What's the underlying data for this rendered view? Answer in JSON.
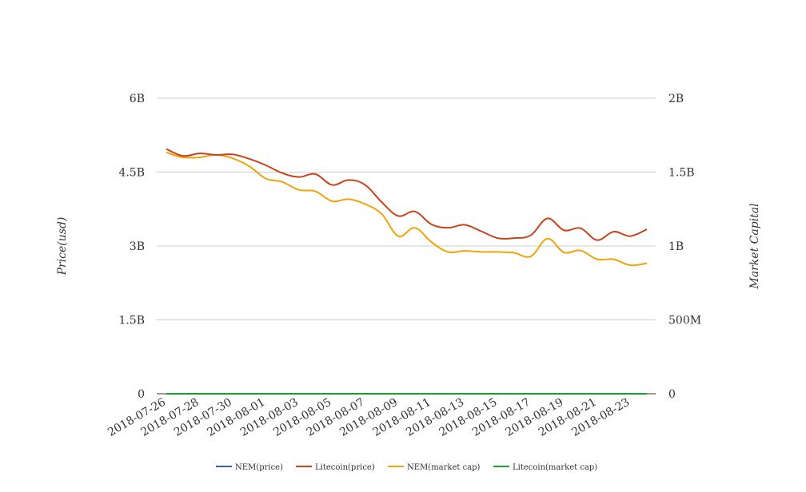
{
  "chart_data": {
    "type": "line",
    "title": "",
    "xlabel": "",
    "ylabel": "Price(usd)",
    "y2label": "Market Capital",
    "grid": true,
    "legend_position": "bottom",
    "x": [
      "2018-07-26",
      "2018-07-27",
      "2018-07-28",
      "2018-07-29",
      "2018-07-30",
      "2018-07-31",
      "2018-08-01",
      "2018-08-02",
      "2018-08-03",
      "2018-08-04",
      "2018-08-05",
      "2018-08-06",
      "2018-08-07",
      "2018-08-08",
      "2018-08-09",
      "2018-08-10",
      "2018-08-11",
      "2018-08-12",
      "2018-08-13",
      "2018-08-14",
      "2018-08-15",
      "2018-08-16",
      "2018-08-17",
      "2018-08-18",
      "2018-08-19",
      "2018-08-20",
      "2018-08-21",
      "2018-08-22",
      "2018-08-23",
      "2018-08-24"
    ],
    "x_tick_labels": [
      "2018-07-26",
      "2018-07-28",
      "2018-07-30",
      "2018-08-01",
      "2018-08-03",
      "2018-08-05",
      "2018-08-07",
      "2018-08-09",
      "2018-08-11",
      "2018-08-13",
      "2018-08-15",
      "2018-08-17",
      "2018-08-19",
      "2018-08-21",
      "2018-08-23"
    ],
    "y_left": {
      "range": [
        0,
        6000000000
      ],
      "ticks": [
        0,
        1500000000,
        3000000000,
        4500000000,
        6000000000
      ],
      "tick_labels": [
        "0",
        "1.5B",
        "3B",
        "4.5B",
        "6B"
      ]
    },
    "y_right": {
      "range": [
        0,
        2000000000
      ],
      "ticks": [
        0,
        500000000,
        1000000000,
        1500000000,
        2000000000
      ],
      "tick_labels": [
        "0",
        "500M",
        "1B",
        "1.5B",
        "2B"
      ]
    },
    "series": [
      {
        "name": "NEM(price)",
        "axis": "left",
        "color": "#3b5fa8",
        "values": [
          0.16,
          0.16,
          0.16,
          0.16,
          0.15,
          0.15,
          0.14,
          0.13,
          0.13,
          0.12,
          0.12,
          0.12,
          0.11,
          0.1,
          0.09,
          0.1,
          0.09,
          0.09,
          0.09,
          0.09,
          0.09,
          0.09,
          0.09,
          0.1,
          0.09,
          0.09,
          0.09,
          0.08,
          0.08,
          0.08
        ]
      },
      {
        "name": "Litecoin(price)",
        "axis": "left",
        "color": "#c8431c",
        "values": [
          4970000000,
          4830000000,
          4880000000,
          4850000000,
          4860000000,
          4770000000,
          4640000000,
          4480000000,
          4400000000,
          4460000000,
          4240000000,
          4340000000,
          4240000000,
          3890000000,
          3610000000,
          3700000000,
          3440000000,
          3370000000,
          3430000000,
          3300000000,
          3160000000,
          3160000000,
          3220000000,
          3560000000,
          3320000000,
          3360000000,
          3120000000,
          3290000000,
          3200000000,
          3340000000
        ]
      },
      {
        "name": "NEM(market cap)",
        "axis": "left",
        "color": "#f0a30a",
        "values": [
          4900000000,
          4800000000,
          4800000000,
          4850000000,
          4780000000,
          4620000000,
          4370000000,
          4300000000,
          4140000000,
          4110000000,
          3910000000,
          3950000000,
          3850000000,
          3650000000,
          3200000000,
          3370000000,
          3080000000,
          2880000000,
          2900000000,
          2880000000,
          2880000000,
          2860000000,
          2790000000,
          3150000000,
          2870000000,
          2910000000,
          2730000000,
          2730000000,
          2610000000,
          2650000000
        ]
      },
      {
        "name": "Litecoin(market cap)",
        "axis": "right",
        "color": "#1f9d2e",
        "values": [
          0.55,
          0.54,
          0.55,
          0.55,
          0.55,
          0.54,
          0.53,
          0.51,
          0.5,
          0.51,
          0.48,
          0.49,
          0.48,
          0.44,
          0.41,
          0.42,
          0.39,
          0.38,
          0.39,
          0.37,
          0.36,
          0.36,
          0.37,
          0.4,
          0.38,
          0.38,
          0.35,
          0.37,
          0.36,
          0.38
        ]
      }
    ]
  }
}
